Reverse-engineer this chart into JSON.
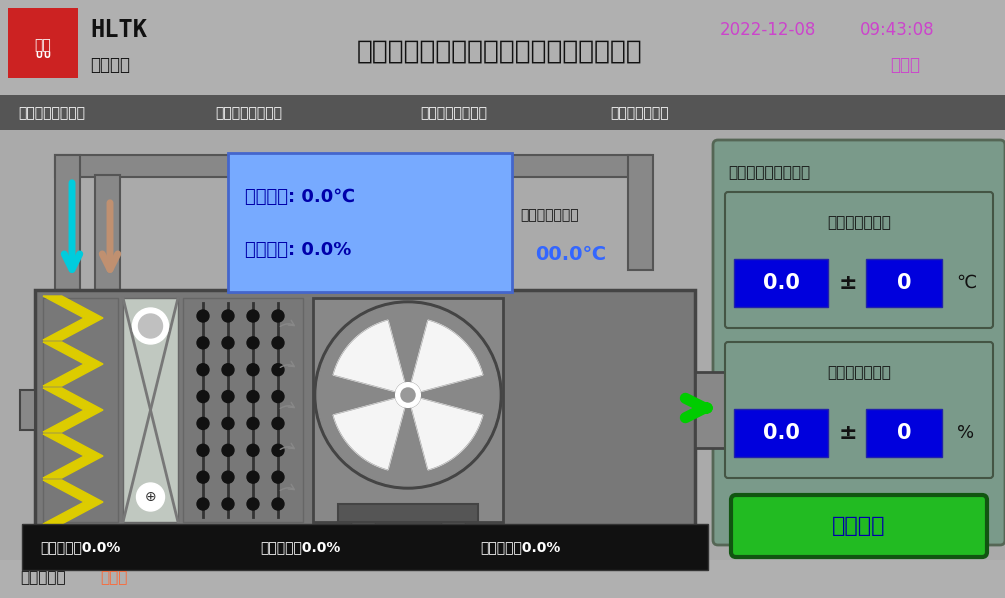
{
  "bg_color": "#b0b0b0",
  "title": "恒温恒湿洁净空调自动控制运行工艺界面",
  "company": "HLTK",
  "company_sub": "华利智成",
  "date_str": "2022-12-08",
  "time_str": "09:43:08",
  "weekday_str": "星期四",
  "datetime_color": "#cc44cc",
  "status_bar_bg": "#555555",
  "status_texts": [
    "送风机模式：手动",
    "初效过滤器：洁净",
    "中效过滤器：洁净",
    "高温保护：正常"
  ],
  "huifeng_temp": "回风温度: 0.0℃",
  "huifeng_hum": "回风湿度: 0.0%",
  "huifeng_color": "#0000aa",
  "blue_box_bg": "#77aaff",
  "chushi_label": "除湿露点温度：",
  "chushi_value": "00.0℃",
  "chushi_color": "#3366ff",
  "auto_run_label": "自动运行参数设置：",
  "temp_set_label": "室内温度设定：",
  "hum_set_label": "室内湿度设定：",
  "blue_input_color": "#0000dd",
  "temp_val": "0.0",
  "temp_adj": "0",
  "temp_unit": "℃",
  "hum_val": "0.0",
  "hum_adj": "0",
  "hum_unit": "%",
  "right_panel_bg": "#7a9a8a",
  "start_btn_color": "#22bb22",
  "start_btn_label": "系统启动",
  "start_btn_text_color": "#0000aa",
  "bottom_bar_bg": "#111111",
  "bottom_texts": [
    "开阀比例：0.0%",
    "加热比例：0.0%",
    "加湿比例：0.0%"
  ],
  "login_label": "登陆用户：",
  "login_user": "管理员",
  "login_user_color": "#ff6633",
  "yellow_filter_color": "#ddcc00",
  "machine_bg": "#787878",
  "machine_dark": "#555555",
  "coil_bg": "#b8c0b0",
  "fan_dark": "#555555",
  "fan_spiral": "#888888"
}
